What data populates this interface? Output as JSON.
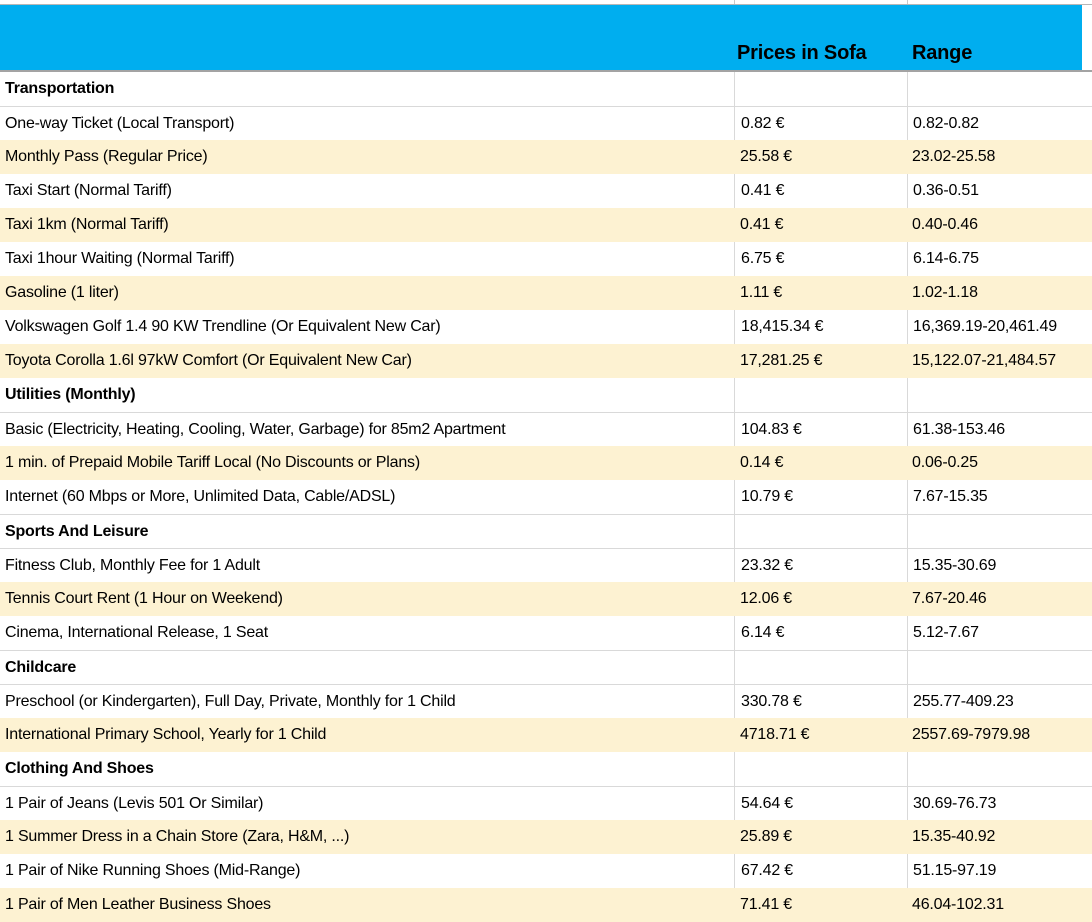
{
  "header": {
    "col_price": "Prices in Sofa",
    "col_range": "Range"
  },
  "colors": {
    "header_bg": "#00aeef",
    "row_alt_bg": "#fdf2d2",
    "gridline": "#d9d9d9",
    "header_border": "#a3a3a3",
    "text": "#000000"
  },
  "rows": [
    {
      "type": "section",
      "label": "Transportation",
      "price": "",
      "range": ""
    },
    {
      "type": "item",
      "label": "One-way Ticket (Local Transport)",
      "price": "0.82 €",
      "range": "0.82-0.82"
    },
    {
      "type": "item",
      "label": "Monthly Pass (Regular Price)",
      "price": "25.58 €",
      "range": "23.02-25.58"
    },
    {
      "type": "item",
      "label": "Taxi Start (Normal Tariff)",
      "price": "0.41 €",
      "range": "0.36-0.51"
    },
    {
      "type": "item",
      "label": "Taxi 1km (Normal Tariff)",
      "price": "0.41 €",
      "range": "0.40-0.46"
    },
    {
      "type": "item",
      "label": "Taxi 1hour Waiting (Normal Tariff)",
      "price": "6.75 €",
      "range": "6.14-6.75"
    },
    {
      "type": "item",
      "label": "Gasoline (1 liter)",
      "price": "1.11 €",
      "range": "1.02-1.18"
    },
    {
      "type": "item",
      "label": "Volkswagen Golf 1.4 90 KW Trendline (Or Equivalent New Car)",
      "price": "18,415.34 €",
      "range": "16,369.19-20,461.49"
    },
    {
      "type": "item",
      "label": "Toyota Corolla 1.6l 97kW Comfort (Or Equivalent New Car)",
      "price": "17,281.25 €",
      "range": "15,122.07-21,484.57"
    },
    {
      "type": "section",
      "label": "Utilities (Monthly)",
      "price": "",
      "range": ""
    },
    {
      "type": "item",
      "label": "Basic (Electricity, Heating, Cooling, Water, Garbage) for 85m2 Apartment",
      "price": "104.83 €",
      "range": "61.38-153.46"
    },
    {
      "type": "item",
      "label": "1 min. of Prepaid Mobile Tariff Local (No Discounts or Plans)",
      "price": "0.14 €",
      "range": "0.06-0.25"
    },
    {
      "type": "item",
      "label": "Internet (60 Mbps or More, Unlimited Data, Cable/ADSL)",
      "price": "10.79 €",
      "range": "7.67-15.35"
    },
    {
      "type": "section",
      "label": "Sports And Leisure",
      "price": "",
      "range": ""
    },
    {
      "type": "item",
      "label": "Fitness Club, Monthly Fee for 1 Adult",
      "price": "23.32 €",
      "range": "15.35-30.69"
    },
    {
      "type": "item",
      "label": "Tennis Court Rent (1 Hour on Weekend)",
      "price": "12.06 €",
      "range": "7.67-20.46"
    },
    {
      "type": "item",
      "label": "Cinema, International Release, 1 Seat",
      "price": "6.14 €",
      "range": "5.12-7.67"
    },
    {
      "type": "section",
      "label": "Childcare",
      "price": "",
      "range": ""
    },
    {
      "type": "item",
      "label": "Preschool (or Kindergarten), Full Day, Private, Monthly for 1 Child",
      "price": "330.78 €",
      "range": "255.77-409.23"
    },
    {
      "type": "item",
      "label": "International Primary School, Yearly for 1 Child",
      "price": "4718.71 €",
      "range": "2557.69-7979.98"
    },
    {
      "type": "section",
      "label": "Clothing And Shoes",
      "price": "",
      "range": ""
    },
    {
      "type": "item",
      "label": "1 Pair of Jeans (Levis 501 Or Similar)",
      "price": "54.64 €",
      "range": "30.69-76.73"
    },
    {
      "type": "item",
      "label": "1 Summer Dress in a Chain Store (Zara, H&M, ...)",
      "price": "25.89 €",
      "range": "15.35-40.92"
    },
    {
      "type": "item",
      "label": "1 Pair of Nike Running Shoes (Mid-Range)",
      "price": "67.42 €",
      "range": "51.15-97.19"
    },
    {
      "type": "item",
      "label": "1 Pair of Men Leather Business Shoes",
      "price": "71.41 €",
      "range": "46.04-102.31"
    }
  ]
}
